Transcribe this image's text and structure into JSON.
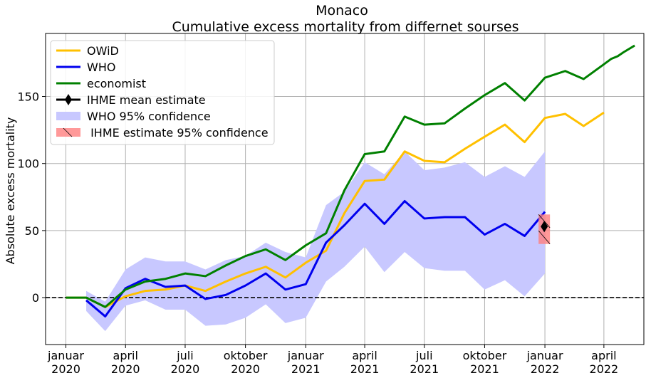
{
  "chart_data": {
    "type": "line",
    "title": "Monaco",
    "subtitle": "Cumulative excess mortality from differnet sourses",
    "xlabel": "",
    "ylabel": "Absolute excess mortality",
    "xlim": [
      "2019-12-01",
      "2022-06-01"
    ],
    "ylim": [
      -35,
      197
    ],
    "yticks": [
      0,
      50,
      100,
      150
    ],
    "xticks": [
      {
        "date": "2020-01-01",
        "label": [
          "januar",
          "2020"
        ]
      },
      {
        "date": "2020-04-01",
        "label": [
          "april",
          "2020"
        ]
      },
      {
        "date": "2020-07-01",
        "label": [
          "juli",
          "2020"
        ]
      },
      {
        "date": "2020-10-01",
        "label": [
          "oktober",
          "2020"
        ]
      },
      {
        "date": "2021-01-01",
        "label": [
          "januar",
          "2021"
        ]
      },
      {
        "date": "2021-04-01",
        "label": [
          "april",
          "2021"
        ]
      },
      {
        "date": "2021-07-01",
        "label": [
          "juli",
          "2021"
        ]
      },
      {
        "date": "2021-10-01",
        "label": [
          "oktober",
          "2021"
        ]
      },
      {
        "date": "2022-01-01",
        "label": [
          "januar",
          "2022"
        ]
      },
      {
        "date": "2022-04-01",
        "label": [
          "april",
          "2022"
        ]
      }
    ],
    "grid": true,
    "reference_line": {
      "y": 0,
      "style": "dashed"
    },
    "legend_position": "upper-left",
    "series": [
      {
        "name": "OWiD",
        "color": "#ffc000",
        "x": [
          "2020-01-01",
          "2020-02-01",
          "2020-03-01",
          "2020-04-01",
          "2020-05-01",
          "2020-06-01",
          "2020-07-01",
          "2020-08-01",
          "2020-09-01",
          "2020-10-01",
          "2020-11-01",
          "2020-12-01",
          "2021-01-01",
          "2021-02-01",
          "2021-03-01",
          "2021-04-01",
          "2021-05-01",
          "2021-06-01",
          "2021-07-01",
          "2021-08-01",
          "2021-09-01",
          "2021-10-01",
          "2021-11-01",
          "2021-12-01",
          "2022-01-01",
          "2022-02-01",
          "2022-03-01",
          "2022-04-01"
        ],
        "y": [
          0,
          0,
          -7,
          1,
          5,
          6,
          9,
          5,
          12,
          18,
          23,
          15,
          26,
          35,
          63,
          87,
          88,
          109,
          102,
          101,
          111,
          120,
          129,
          116,
          134,
          137,
          128,
          138
        ]
      },
      {
        "name": "WHO",
        "color": "#0000ee",
        "x": [
          "2020-02-01",
          "2020-03-01",
          "2020-04-01",
          "2020-05-01",
          "2020-06-01",
          "2020-07-01",
          "2020-08-01",
          "2020-09-01",
          "2020-10-01",
          "2020-11-01",
          "2020-12-01",
          "2021-01-01",
          "2021-02-01",
          "2021-03-01",
          "2021-04-01",
          "2021-05-01",
          "2021-06-01",
          "2021-07-01",
          "2021-08-01",
          "2021-09-01",
          "2021-10-01",
          "2021-11-01",
          "2021-12-01",
          "2022-01-01"
        ],
        "y": [
          -2,
          -14,
          7,
          14,
          8,
          9,
          -1,
          2,
          9,
          18,
          6,
          10,
          41,
          54,
          70,
          55,
          72,
          59,
          60,
          60,
          47,
          55,
          46,
          64
        ]
      },
      {
        "name": "economist",
        "color": "#008000",
        "x": [
          "2020-01-01",
          "2020-02-01",
          "2020-03-01",
          "2020-04-01",
          "2020-05-01",
          "2020-06-01",
          "2020-07-01",
          "2020-08-01",
          "2020-09-01",
          "2020-10-01",
          "2020-11-01",
          "2020-12-01",
          "2021-01-01",
          "2021-02-01",
          "2021-03-01",
          "2021-04-01",
          "2021-05-01",
          "2021-06-01",
          "2021-07-01",
          "2021-08-01",
          "2021-09-01",
          "2021-10-01",
          "2021-11-01",
          "2021-12-01",
          "2022-01-01",
          "2022-02-01",
          "2022-03-01",
          "2022-04-01",
          "2022-04-12",
          "2022-04-22",
          "2022-05-01",
          "2022-05-18"
        ],
        "y": [
          0,
          0,
          -7,
          6,
          12,
          14,
          18,
          16,
          24,
          31,
          36,
          28,
          39,
          48,
          80,
          107,
          109,
          135,
          129,
          130,
          141,
          151,
          160,
          147,
          164,
          169,
          163,
          174,
          178,
          180,
          183,
          188
        ]
      }
    ],
    "band": {
      "name": "WHO 95% confidence",
      "color": "#c8c8ff",
      "x": [
        "2020-02-01",
        "2020-03-01",
        "2020-04-01",
        "2020-05-01",
        "2020-06-01",
        "2020-07-01",
        "2020-08-01",
        "2020-09-01",
        "2020-10-01",
        "2020-11-01",
        "2020-12-01",
        "2021-01-01",
        "2021-02-01",
        "2021-03-01",
        "2021-04-01",
        "2021-05-01",
        "2021-06-01",
        "2021-07-01",
        "2021-08-01",
        "2021-09-01",
        "2021-10-01",
        "2021-11-01",
        "2021-12-01",
        "2022-01-01"
      ],
      "upper": [
        5,
        -3,
        21,
        30,
        27,
        27,
        21,
        28,
        31,
        41,
        34,
        30,
        69,
        79,
        101,
        92,
        109,
        95,
        97,
        101,
        90,
        98,
        90,
        109
      ],
      "lower": [
        -10,
        -25,
        -6,
        -2,
        -9,
        -9,
        -21,
        -20,
        -15,
        -5,
        -19,
        -15,
        12,
        23,
        38,
        19,
        34,
        22,
        20,
        20,
        6,
        13,
        1,
        18
      ]
    },
    "ihme": {
      "mean_label": "IHME mean estimate",
      "ci_label": " IHME estimate 95% confidence",
      "date": "2021-12-31",
      "mean": 53,
      "ci": [
        40,
        62
      ],
      "marker_color": "#000000",
      "ci_color": "#ff8080"
    }
  }
}
